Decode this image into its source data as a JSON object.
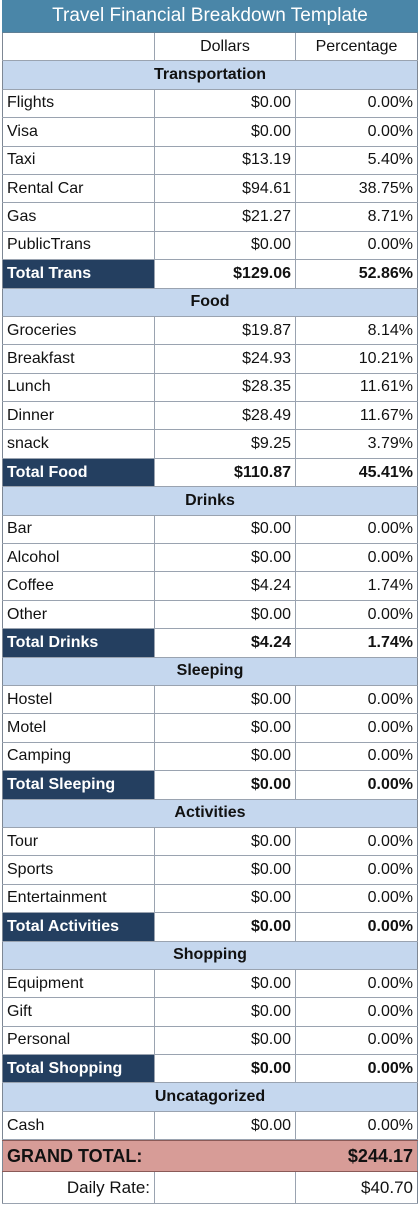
{
  "title": "Travel Financial Breakdown Template",
  "header": {
    "col1": "",
    "col2": "Dollars",
    "col3": "Percentage"
  },
  "sections": [
    {
      "name": "Transportation",
      "rows": [
        {
          "label": "Flights",
          "dollars": "$0.00",
          "pct": "0.00%"
        },
        {
          "label": "Visa",
          "dollars": "$0.00",
          "pct": "0.00%"
        },
        {
          "label": "Taxi",
          "dollars": "$13.19",
          "pct": "5.40%"
        },
        {
          "label": "Rental Car",
          "dollars": "$94.61",
          "pct": "38.75%"
        },
        {
          "label": "Gas",
          "dollars": "$21.27",
          "pct": "8.71%"
        },
        {
          "label": "PublicTrans",
          "dollars": "$0.00",
          "pct": "0.00%"
        }
      ],
      "total": {
        "label": "Total Trans",
        "dollars": "$129.06",
        "pct": "52.86%"
      }
    },
    {
      "name": "Food",
      "rows": [
        {
          "label": "Groceries",
          "dollars": "$19.87",
          "pct": "8.14%"
        },
        {
          "label": "Breakfast",
          "dollars": "$24.93",
          "pct": "10.21%"
        },
        {
          "label": "Lunch",
          "dollars": "$28.35",
          "pct": "11.61%"
        },
        {
          "label": "Dinner",
          "dollars": "$28.49",
          "pct": "11.67%"
        },
        {
          "label": "snack",
          "dollars": "$9.25",
          "pct": "3.79%"
        }
      ],
      "total": {
        "label": "Total Food",
        "dollars": "$110.87",
        "pct": "45.41%"
      }
    },
    {
      "name": "Drinks",
      "rows": [
        {
          "label": "Bar",
          "dollars": "$0.00",
          "pct": "0.00%"
        },
        {
          "label": "Alcohol",
          "dollars": "$0.00",
          "pct": "0.00%"
        },
        {
          "label": "Coffee",
          "dollars": "$4.24",
          "pct": "1.74%"
        },
        {
          "label": "Other",
          "dollars": "$0.00",
          "pct": "0.00%"
        }
      ],
      "total": {
        "label": "Total Drinks",
        "dollars": "$4.24",
        "pct": "1.74%"
      }
    },
    {
      "name": "Sleeping",
      "rows": [
        {
          "label": "Hostel",
          "dollars": "$0.00",
          "pct": "0.00%"
        },
        {
          "label": "Motel",
          "dollars": "$0.00",
          "pct": "0.00%"
        },
        {
          "label": "Camping",
          "dollars": "$0.00",
          "pct": "0.00%"
        }
      ],
      "total": {
        "label": "Total Sleeping",
        "dollars": "$0.00",
        "pct": "0.00%"
      }
    },
    {
      "name": "Activities",
      "rows": [
        {
          "label": "Tour",
          "dollars": "$0.00",
          "pct": "0.00%"
        },
        {
          "label": "Sports",
          "dollars": "$0.00",
          "pct": "0.00%"
        },
        {
          "label": "Entertainment",
          "dollars": "$0.00",
          "pct": "0.00%"
        }
      ],
      "total": {
        "label": "Total Activities",
        "dollars": "$0.00",
        "pct": "0.00%"
      }
    },
    {
      "name": "Shopping",
      "rows": [
        {
          "label": "Equipment",
          "dollars": "$0.00",
          "pct": "0.00%"
        },
        {
          "label": "Gift",
          "dollars": "$0.00",
          "pct": "0.00%"
        },
        {
          "label": "Personal",
          "dollars": "$0.00",
          "pct": "0.00%"
        }
      ],
      "total": {
        "label": "Total Shopping",
        "dollars": "$0.00",
        "pct": "0.00%"
      }
    },
    {
      "name": "Uncatagorized",
      "rows": [
        {
          "label": "Cash",
          "dollars": "$0.00",
          "pct": "0.00%"
        }
      ],
      "total": null
    }
  ],
  "grand_total": {
    "label": "GRAND TOTAL:",
    "value": "$244.17"
  },
  "daily_rate": {
    "label": "Daily Rate:",
    "value": "$40.70"
  },
  "colors": {
    "title_bg": "#4a86a8",
    "section_bg": "#c5d7ee",
    "total_bg": "#243f60",
    "grand_bg": "#d79c97"
  }
}
